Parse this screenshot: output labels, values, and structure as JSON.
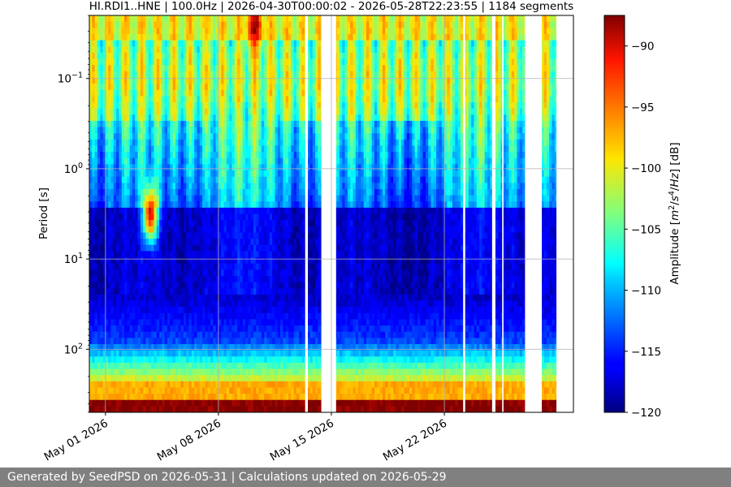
{
  "chart_data": {
    "type": "heatmap",
    "title": "HI.RDI1..HNE | 100.0Hz | 2026-04-30T00:00:02 - 2026-05-28T22:23:55 | 1184 segments",
    "ylabel": "Period [s]",
    "colorbar_label": "Amplitude [m²/s⁴/Hz] [dB]",
    "colorbar_label_parts": [
      "Amplitude [",
      "m",
      "2",
      "/",
      "s",
      "4",
      "/",
      "Hz",
      "] [dB]"
    ],
    "yscale": "log",
    "y_inverted": true,
    "y_range": [
      500,
      0.02
    ],
    "x_range": [
      "2026-04-30",
      "2026-05-30"
    ],
    "x_ticks": [
      {
        "date": "2026-05-01",
        "label": "May 01 2026"
      },
      {
        "date": "2026-05-08",
        "label": "May 08 2026"
      },
      {
        "date": "2026-05-15",
        "label": "May 15 2026"
      },
      {
        "date": "2026-05-22",
        "label": "May 22 2026"
      }
    ],
    "y_ticks": [
      {
        "value": 0.1,
        "base": "10",
        "exp": "−1"
      },
      {
        "value": 1,
        "base": "10",
        "exp": "0"
      },
      {
        "value": 10,
        "base": "10",
        "exp": "1"
      },
      {
        "value": 100,
        "base": "10",
        "exp": "2"
      }
    ],
    "colorbar_range": [
      -120,
      -87.5
    ],
    "colorbar_ticks": [
      {
        "value": -90,
        "label": "−90"
      },
      {
        "value": -95,
        "label": "−95"
      },
      {
        "value": -100,
        "label": "−100"
      },
      {
        "value": -105,
        "label": "−105"
      },
      {
        "value": -110,
        "label": "−110"
      },
      {
        "value": -115,
        "label": "−115"
      },
      {
        "value": -120,
        "label": "−120"
      }
    ],
    "colormap": "jet",
    "grid": true,
    "data_gaps": [
      [
        "2026-05-13 09:00",
        "2026-05-13 13:00"
      ],
      [
        "2026-05-14 09:00",
        "2026-05-15 07:00"
      ],
      [
        "2026-05-23 04:00",
        "2026-05-23 07:00"
      ],
      [
        "2026-05-24 23:00",
        "2026-05-25 04:00"
      ],
      [
        "2026-05-25 14:00",
        "2026-05-25 16:00"
      ],
      [
        "2026-05-27 00:00",
        "2026-05-28 01:00"
      ]
    ],
    "events": [
      {
        "time": "2026-05-03 19:00",
        "period": 3.2,
        "amplitude": -90
      },
      {
        "time": "2026-05-10 06:00",
        "period": 0.025,
        "amplitude": -88
      }
    ]
  },
  "footer": {
    "text": "Generated by SeedPSD on 2026-05-31 | Calculations updated on 2026-05-29"
  }
}
